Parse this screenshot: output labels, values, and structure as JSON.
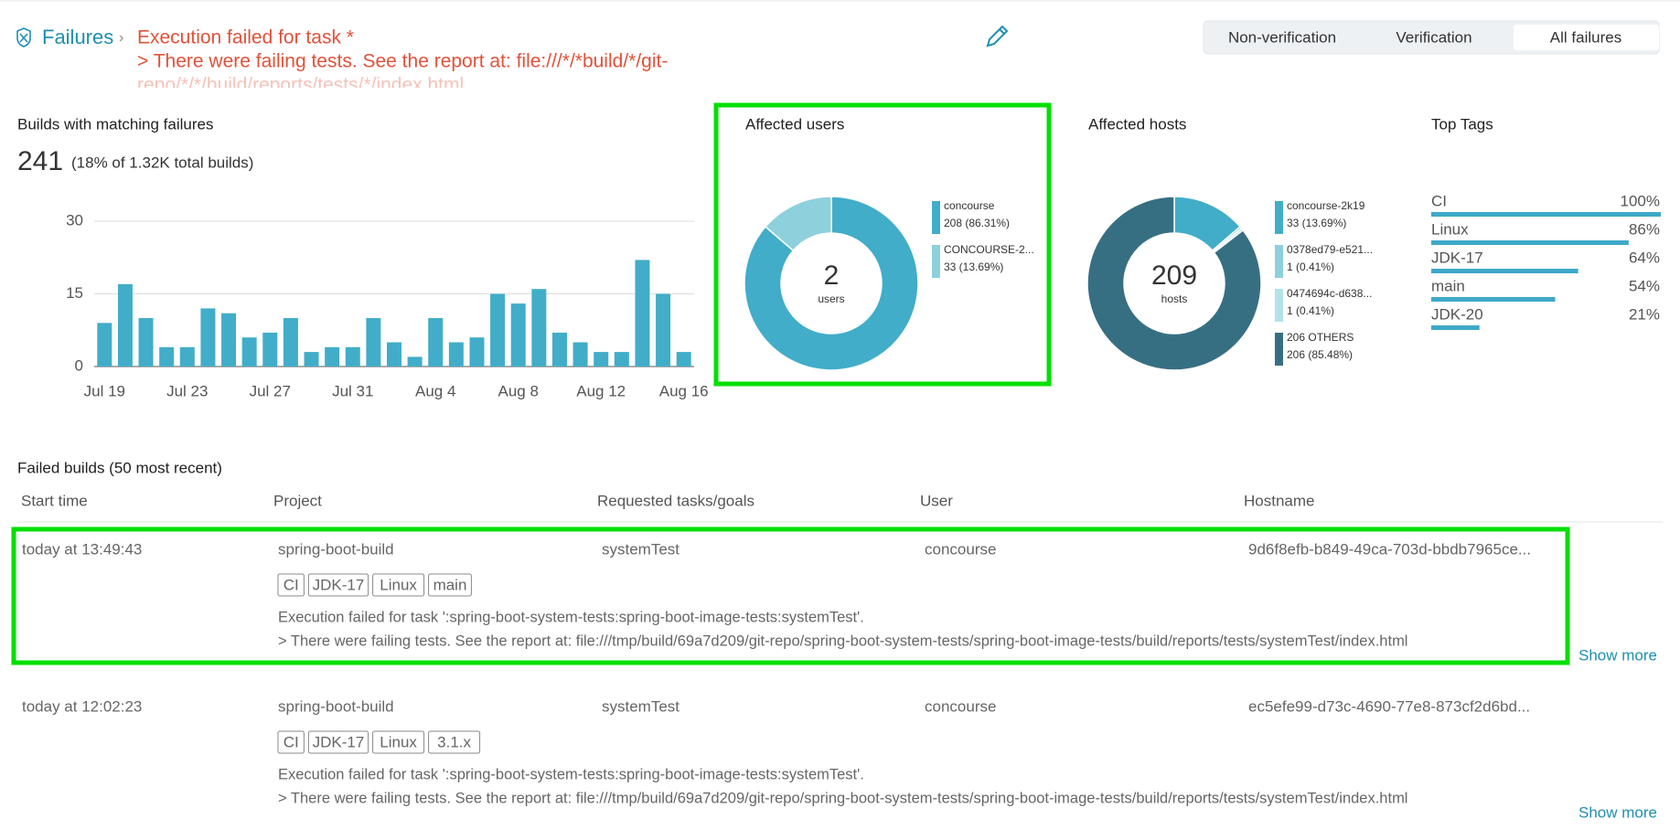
{
  "header": {
    "breadcrumb": "Failures",
    "title_lines": [
      "Execution failed for task *",
      "> There were failing tests. See the report at: file:///*/*build/*/git-",
      "repo/*/*/build/reports/tests/*/index.html"
    ]
  },
  "filters": {
    "options": [
      "Non-verification",
      "Verification",
      "All failures"
    ],
    "selected": 2
  },
  "chart_data": [
    {
      "type": "bar",
      "title": "Builds with matching failures",
      "headline": 241,
      "note": "(18% of 1.32K total builds)",
      "categories": [
        "Jul 19",
        null,
        null,
        null,
        "Jul 23",
        null,
        null,
        null,
        "Jul 27",
        null,
        null,
        null,
        "Jul 31",
        null,
        null,
        null,
        "Aug 4",
        null,
        null,
        null,
        "Aug 8",
        null,
        null,
        null,
        "Aug 12",
        null,
        null,
        null,
        "Aug 16"
      ],
      "values": [
        9,
        17,
        10,
        4,
        4,
        12,
        11,
        6,
        7,
        10,
        3,
        4,
        4,
        10,
        5,
        2,
        10,
        5,
        6,
        15,
        13,
        16,
        7,
        5,
        3,
        3,
        22,
        15,
        3
      ],
      "color": "#41adc9",
      "ylim": [
        0,
        30
      ],
      "yticks": [
        0,
        15,
        30
      ],
      "grid": true
    },
    {
      "type": "donut",
      "title": "Affected users",
      "center_value": 2,
      "center_label": "users",
      "categories": [
        "concourse",
        "CONCOURSE-2..."
      ],
      "values": [
        208,
        33
      ],
      "value_labels": [
        "208 (86.31%)",
        "33 (13.69%)"
      ],
      "colors": [
        "#41adc9",
        "#8fd0dd"
      ]
    },
    {
      "type": "donut",
      "title": "Affected hosts",
      "center_value": 209,
      "center_label": "hosts",
      "categories": [
        "concourse-2k19",
        "0378ed79-e521...",
        "0474694c-d638...",
        "206 OTHERS"
      ],
      "values": [
        33,
        1,
        1,
        206
      ],
      "value_labels": [
        "33 (13.69%)",
        "1 (0.41%)",
        "1 (0.41%)",
        "206 (85.48%)"
      ],
      "colors": [
        "#41adc9",
        "#8fd0dd",
        "#b5e1ea",
        "#376f82"
      ]
    },
    {
      "type": "hbar",
      "title": "Top Tags",
      "categories": [
        "CI",
        "Linux",
        "JDK-17",
        "main",
        "JDK-20"
      ],
      "values": [
        100,
        86,
        64,
        54,
        21
      ],
      "value_labels": [
        "100%",
        "86%",
        "64%",
        "54%",
        "21%"
      ],
      "xlim": [
        0,
        100
      ],
      "color": "#3ea9c8"
    }
  ],
  "table": {
    "title": "Failed builds (50 most recent)",
    "columns": [
      "Start time",
      "Project",
      "Requested tasks/goals",
      "User",
      "Hostname"
    ],
    "rows": [
      {
        "cells": [
          "today at 13:49:43",
          "spring-boot-build",
          "systemTest",
          "concourse",
          "9d6f8efb-b849-49ca-703d-bbdb7965ce..."
        ],
        "tags": [
          "CI",
          "JDK-17",
          "Linux",
          "main"
        ],
        "message": [
          "Execution failed for task ':spring-boot-system-tests:spring-boot-image-tests:systemTest'.",
          "> There were failing tests. See the report at: file:///tmp/build/69a7d209/git-repo/spring-boot-system-tests/spring-boot-image-tests/build/reports/tests/systemTest/index.html"
        ],
        "more": "Show more"
      },
      {
        "cells": [
          "today at 12:02:23",
          "spring-boot-build",
          "systemTest",
          "concourse",
          "ec5efe99-d73c-4690-77e8-873cf2d6bd..."
        ],
        "tags": [
          "CI",
          "JDK-17",
          "Linux",
          "3.1.x"
        ],
        "message": [
          "Execution failed for task ':spring-boot-system-tests:spring-boot-image-tests:systemTest'.",
          "> There were failing tests. See the report at: file:///tmp/build/69a7d209/git-repo/spring-boot-system-tests/spring-boot-image-tests/build/reports/tests/systemTest/index.html"
        ],
        "more": "Show more"
      }
    ]
  }
}
